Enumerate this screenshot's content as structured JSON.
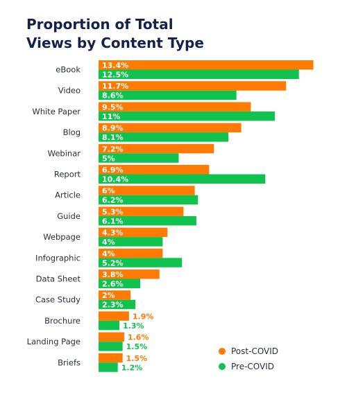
{
  "title_line1": "Proportion of Total",
  "title_line2": "Views by Content Type",
  "colors": {
    "post": "#ff7a00",
    "pre": "#10c24e"
  },
  "chart_data": {
    "type": "bar",
    "orientation": "horizontal",
    "title": "Proportion of Total Views by Content Type",
    "categories": [
      "eBook",
      "Video",
      "White Paper",
      "Blog",
      "Webinar",
      "Report",
      "Article",
      "Guide",
      "Webpage",
      "Infographic",
      "Data Sheet",
      "Case Study",
      "Brochure",
      "Landing Page",
      "Briefs"
    ],
    "series": [
      {
        "name": "Post-COVID",
        "values": [
          13.4,
          11.7,
          9.5,
          8.9,
          7.2,
          6.9,
          6,
          5.3,
          4.3,
          4,
          3.8,
          2,
          1.9,
          1.6,
          1.5
        ]
      },
      {
        "name": "Pre-COVID",
        "values": [
          12.5,
          8.6,
          11,
          8.1,
          5,
          10.4,
          6.2,
          6.1,
          4,
          5.2,
          2.6,
          2.3,
          1.3,
          1.5,
          1.2
        ]
      }
    ],
    "unit_suffix": "%",
    "legend_position": "bottom-right",
    "grid": false,
    "xlabel": "",
    "ylabel": ""
  }
}
